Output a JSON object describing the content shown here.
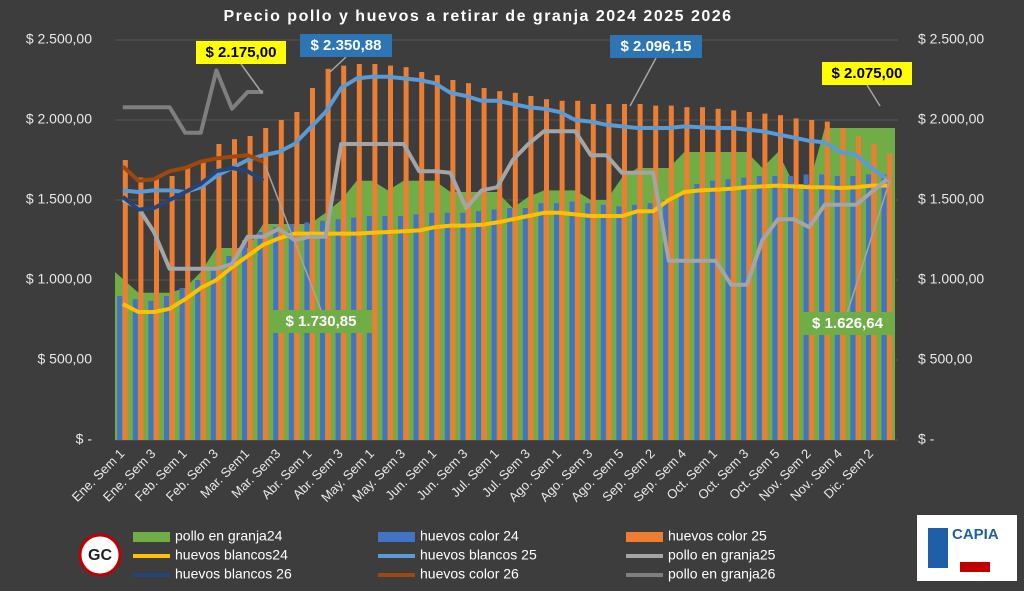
{
  "chart_data": {
    "type": "combo",
    "title": "Precio pollo y huevos a retirar de granja  2024 2025 2026",
    "categories": [
      "Ene. Sem 1",
      null,
      "Ene. Sem 3",
      null,
      "Feb. Sem 1",
      null,
      "Feb. Sem 3",
      null,
      "Mar. Sem1",
      null,
      "Mar. Sem3",
      null,
      "Abr. Sem 1",
      null,
      "Abr. Sem 3",
      null,
      "May. Sem 1",
      null,
      "May. Sem 3",
      null,
      "Jun. Sem 1",
      null,
      "Jun. Sem 3",
      null,
      "Jul. Sem 1",
      null,
      "Jul. Sem 3",
      null,
      "Ago. Sem 1",
      null,
      "Ago. Sem 3",
      null,
      "Ago. Sem 5",
      null,
      "Sep. Sem 2",
      null,
      "Sep. Sem 4",
      null,
      "Oct. Sem 1",
      null,
      "Oct. Sem 3",
      null,
      "Oct. Sem 5",
      null,
      "Nov. Sem 2",
      null,
      "Nov. Sem 4",
      null,
      "Dic. Sem 2",
      null
    ],
    "ylim": [
      0,
      2500
    ],
    "yticks": [
      {
        "value": 0,
        "label": "$ -"
      },
      {
        "value": 500,
        "label": "$ 500,00"
      },
      {
        "value": 1000,
        "label": "$ 1.000,00"
      },
      {
        "value": 1500,
        "label": "$ 1.500,00"
      },
      {
        "value": 2000,
        "label": "$ 2.000,00"
      },
      {
        "value": 2500,
        "label": "$ 2.500,00"
      }
    ],
    "y2lim": [
      0,
      2500
    ],
    "y2ticks": [
      {
        "value": 0,
        "label": "$ -"
      },
      {
        "value": 500,
        "label": "$ 500,00"
      },
      {
        "value": 1000,
        "label": "$ 1.000,00"
      },
      {
        "value": 1500,
        "label": "$ 1.500,00"
      },
      {
        "value": 2000,
        "label": "$ 2.000,00"
      },
      {
        "value": 2500,
        "label": "$ 2.500,00"
      }
    ],
    "grid": true,
    "series": [
      {
        "name": "pollo en granja24",
        "type": "area",
        "color": "#70ad47",
        "values": [
          1050,
          920,
          920,
          920,
          950,
          1050,
          1200,
          1200,
          1200,
          1350,
          1350,
          1350,
          1350,
          1420,
          1500,
          1620,
          1620,
          1560,
          1620,
          1620,
          1620,
          1550,
          1550,
          1550,
          1550,
          1450,
          1520,
          1560,
          1560,
          1560,
          1500,
          1500,
          1640,
          1700,
          1700,
          1700,
          1800,
          1800,
          1800,
          1800,
          1800,
          1700,
          1800,
          1600,
          1600,
          1950,
          1950,
          1950,
          1950,
          1950
        ]
      },
      {
        "name": "huevos color 24",
        "type": "bar",
        "color": "#4472c4",
        "values": [
          900,
          880,
          870,
          900,
          950,
          1000,
          1080,
          1150,
          1250,
          1300,
          1330,
          1350,
          1360,
          1370,
          1380,
          1390,
          1400,
          1400,
          1400,
          1410,
          1420,
          1420,
          1420,
          1430,
          1440,
          1450,
          1450,
          1480,
          1480,
          1490,
          1480,
          1470,
          1460,
          1470,
          1480,
          1500,
          1550,
          1600,
          1620,
          1630,
          1640,
          1650,
          1650,
          1650,
          1660,
          1660,
          1650,
          1650,
          1660,
          1660
        ]
      },
      {
        "name": "huevos color 25",
        "type": "bar",
        "color": "#ed7d31",
        "values": [
          1750,
          1640,
          1640,
          1650,
          1700,
          1750,
          1850,
          1880,
          1900,
          1950,
          2000,
          2050,
          2200,
          2320,
          2340,
          2350,
          2350,
          2340,
          2330,
          2300,
          2280,
          2250,
          2230,
          2200,
          2180,
          2170,
          2150,
          2130,
          2120,
          2120,
          2100,
          2100,
          2100,
          2100,
          2090,
          2090,
          2080,
          2080,
          2070,
          2060,
          2050,
          2040,
          2030,
          2010,
          2000,
          1990,
          1950,
          1900,
          1850,
          1790
        ]
      },
      {
        "name": "huevos blancos24",
        "type": "line",
        "color": "#ffc000",
        "values": [
          850,
          800,
          800,
          820,
          880,
          950,
          1000,
          1080,
          1150,
          1220,
          1260,
          1290,
          1290,
          1290,
          1290,
          1290,
          1295,
          1300,
          1305,
          1310,
          1330,
          1340,
          1340,
          1345,
          1360,
          1380,
          1400,
          1420,
          1420,
          1410,
          1400,
          1400,
          1400,
          1430,
          1430,
          1500,
          1550,
          1560,
          1565,
          1570,
          1580,
          1585,
          1590,
          1585,
          1580,
          1580,
          1575,
          1580,
          1590,
          1590
        ]
      },
      {
        "name": "huevos blancos 25",
        "type": "line",
        "color": "#5b9bd5",
        "values": [
          1560,
          1550,
          1560,
          1560,
          1550,
          1580,
          1650,
          1700,
          1750,
          1780,
          1800,
          1850,
          1950,
          2050,
          2200,
          2260,
          2270,
          2270,
          2260,
          2250,
          2230,
          2170,
          2150,
          2120,
          2120,
          2100,
          2080,
          2070,
          2050,
          2000,
          1990,
          1970,
          1960,
          1950,
          1950,
          1950,
          1960,
          1955,
          1950,
          1950,
          1940,
          1930,
          1910,
          1890,
          1870,
          1860,
          1800,
          1780,
          1700,
          1630
        ]
      },
      {
        "name": "pollo en granja25",
        "type": "line",
        "color": "#a5a5a5",
        "values": [
          1500,
          1450,
          1300,
          1070,
          1070,
          1070,
          1070,
          1100,
          1270,
          1270,
          1320,
          1250,
          1270,
          1270,
          1850,
          1850,
          1850,
          1850,
          1850,
          1680,
          1680,
          1670,
          1450,
          1560,
          1580,
          1750,
          1850,
          1930,
          1930,
          1930,
          1780,
          1780,
          1670,
          1670,
          1670,
          1120,
          1120,
          1120,
          1120,
          970,
          970,
          1250,
          1380,
          1380,
          1330,
          1470,
          1470,
          1470,
          1550,
          1630
        ]
      },
      {
        "name": "huevos blancos 26",
        "type": "line",
        "color": "#264478",
        "values": [
          1520,
          1440,
          1450,
          1500,
          1550,
          1600,
          1680,
          1700,
          1680,
          1620,
          null,
          null,
          null,
          null,
          null,
          null,
          null,
          null,
          null,
          null,
          null,
          null,
          null,
          null,
          null,
          null,
          null,
          null,
          null,
          null,
          null,
          null,
          null,
          null,
          null,
          null,
          null,
          null,
          null,
          null,
          null,
          null,
          null,
          null,
          null,
          null,
          null,
          null,
          null,
          null
        ]
      },
      {
        "name": "huevos color 26",
        "type": "line",
        "color": "#9e480e",
        "values": [
          1710,
          1620,
          1630,
          1680,
          1700,
          1740,
          1760,
          1770,
          1780,
          1740,
          null,
          null,
          null,
          null,
          null,
          null,
          null,
          null,
          null,
          null,
          null,
          null,
          null,
          null,
          null,
          null,
          null,
          null,
          null,
          null,
          null,
          null,
          null,
          null,
          null,
          null,
          null,
          null,
          null,
          null,
          null,
          null,
          null,
          null,
          null,
          null,
          null,
          null,
          null,
          null
        ]
      },
      {
        "name": "pollo en granja26",
        "type": "line",
        "color": "#7f7f7f",
        "values": [
          2080,
          2080,
          2080,
          2080,
          1920,
          1920,
          2310,
          2070,
          2175,
          2175,
          null,
          null,
          null,
          null,
          null,
          null,
          null,
          null,
          null,
          null,
          null,
          null,
          null,
          null,
          null,
          null,
          null,
          null,
          null,
          null,
          null,
          null,
          null,
          null,
          null,
          null,
          null,
          null,
          null,
          null,
          null,
          null,
          null,
          null,
          null,
          null,
          null,
          null,
          null,
          null
        ]
      }
    ],
    "annotations": [
      "$ 2.175,00",
      "$ 2.350,88",
      "$ 2.096,15",
      "$ 2.075,00",
      "$ 1.730,85",
      "$ 1.626,64"
    ],
    "logos": [
      "GC",
      "CAPIA"
    ]
  }
}
